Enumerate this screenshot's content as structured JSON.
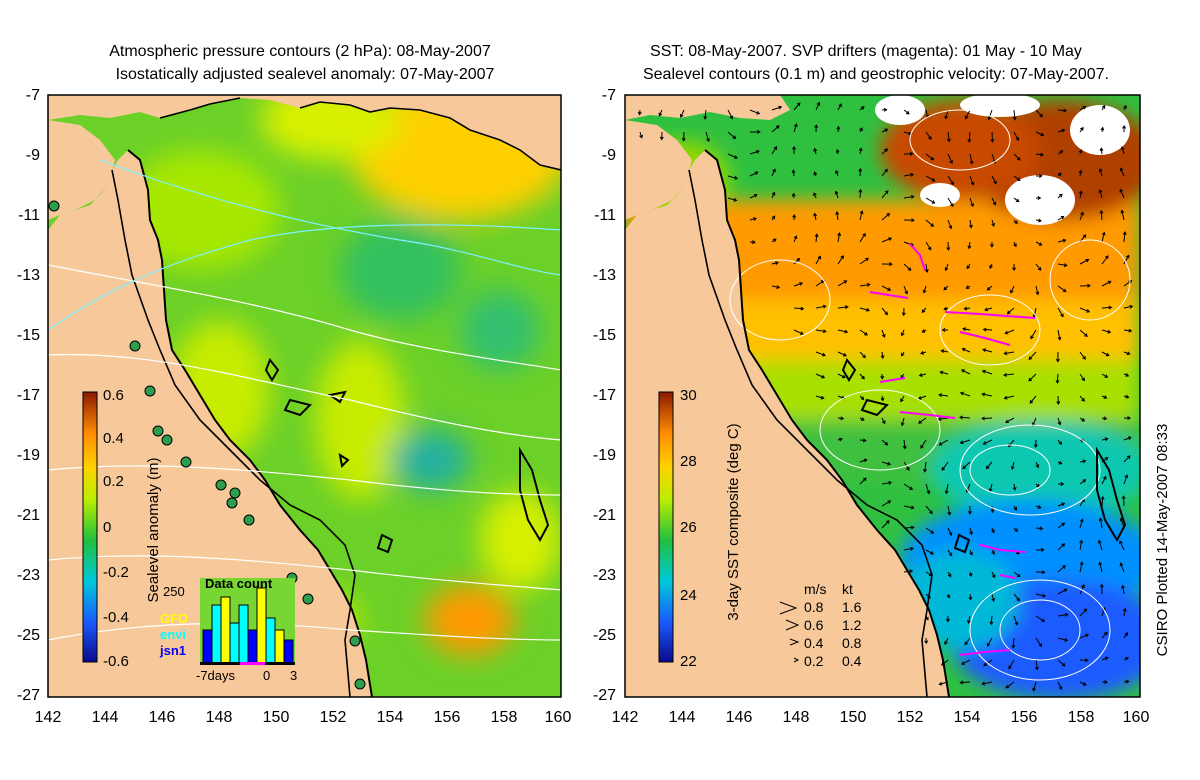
{
  "left_panel": {
    "title_line1": "Atmospheric pressure contours (2 hPa): 08-May-2007",
    "title_line2": "Isostatically adjusted sealevel anomaly: 07-May-2007",
    "colorbar": {
      "label": "Sealevel anomaly (m)",
      "ticks": [
        "0.6",
        "0.4",
        "0.2",
        "0",
        "-0.2",
        "-0.4",
        "-0.6"
      ],
      "range": [
        -0.6,
        0.6
      ]
    },
    "inset": {
      "title": "Data count",
      "y_tick": "250",
      "legend": [
        {
          "name": "GFO",
          "color": "#ffff00"
        },
        {
          "name": "envi",
          "color": "#00ffff"
        },
        {
          "name": "jsn1",
          "color": "#0000ff"
        }
      ],
      "x_ticks": [
        "-7days",
        "0",
        "3"
      ]
    }
  },
  "right_panel": {
    "title_line1": "SST: 08-May-2007. SVP drifters (magenta): 01 May - 10 May",
    "title_line2": "Sealevel contours (0.1 m) and geostrophic velocity: 07-May-2007.",
    "colorbar": {
      "label": "3-day SST composite (deg C)",
      "ticks": [
        "30",
        "28",
        "26",
        "24",
        "22"
      ],
      "range": [
        22,
        30
      ]
    },
    "velocity_key": {
      "header_ms": "m/s",
      "header_kt": "kt",
      "rows": [
        {
          "ms": "0.8",
          "kt": "1.6"
        },
        {
          "ms": "0.6",
          "kt": "1.2"
        },
        {
          "ms": "0.4",
          "kt": "0.8"
        },
        {
          "ms": "0.2",
          "kt": "0.4"
        }
      ]
    },
    "credit": "CSIRO Plotted 14-May-2007 08:33"
  },
  "axes": {
    "lon_ticks": [
      "142",
      "144",
      "146",
      "148",
      "150",
      "152",
      "154",
      "156",
      "158",
      "160"
    ],
    "lat_ticks": [
      "-7",
      "-9",
      "-11",
      "-13",
      "-15",
      "-17",
      "-19",
      "-21",
      "-23",
      "-25",
      "-27"
    ]
  },
  "colors": {
    "land": "#f7c99a",
    "coast": "#000000",
    "ocean_base": "#55cc22",
    "drifter": "#ff00ff",
    "tide_gauge": "#2e9e4e"
  }
}
